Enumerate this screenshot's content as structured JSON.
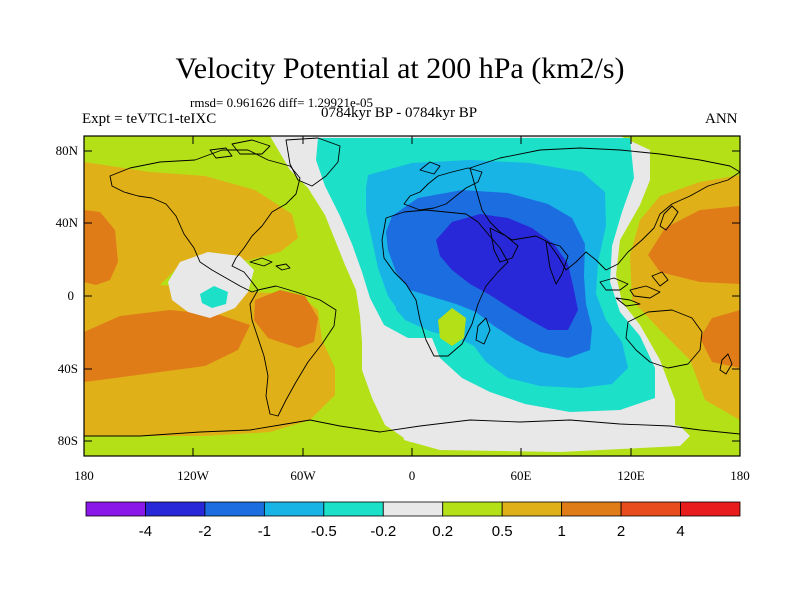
{
  "header": {
    "title": "Velocity Potential at 200 hPa (km2/s)",
    "stats": "rmsd= 0.961626 diff= 1.29921e-05",
    "experiment": "Expt = teVTC1-teIXC",
    "period": "0784kyr BP - 0784kyr BP",
    "season": "ANN"
  },
  "axes": {
    "lat_ticks": [
      "80N",
      "40N",
      "0",
      "40S",
      "80S"
    ],
    "lon_ticks": [
      "180",
      "120W",
      "60W",
      "0",
      "60E",
      "120E",
      "180"
    ]
  },
  "colorbar": {
    "labels": [
      "-4",
      "-2",
      "-1",
      "-0.5",
      "-0.2",
      "0.2",
      "0.5",
      "1",
      "2",
      "4"
    ],
    "colors": [
      "#8a18e8",
      "#2828d8",
      "#1c6ee0",
      "#18b4e6",
      "#1ce0c8",
      "#e8e8e8",
      "#b4e018",
      "#e0b018",
      "#e07c18",
      "#e84c1c",
      "#e81c1c"
    ]
  },
  "map": {
    "ocean_color": "#e8e8e8",
    "coastline_color": "#000000"
  }
}
